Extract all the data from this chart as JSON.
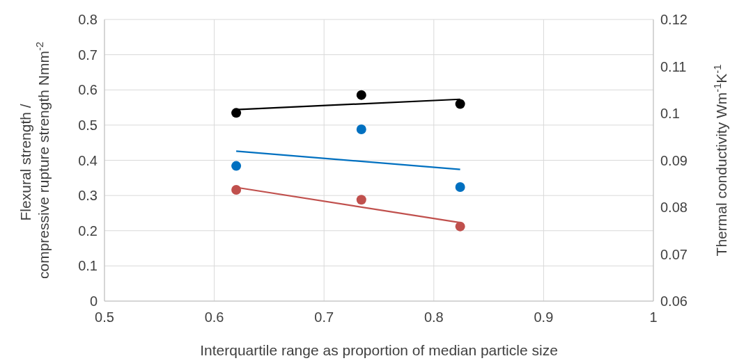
{
  "chart_data": {
    "type": "scatter",
    "xlabel": "Interquartile range as proportion of median particle size",
    "ylabel": "Flexural strength / compressive rupture strength Nmm$^{-2}$",
    "y2label": "Thermal conductivity Wm$^{-1}$K$^{-1}$",
    "xlim": [
      0.5,
      1
    ],
    "xticks": [
      0.5,
      0.6,
      0.7,
      0.8,
      0.9,
      1
    ],
    "ylim": [
      0,
      0.8
    ],
    "yticks": [
      0,
      0.1,
      0.2,
      0.3,
      0.4,
      0.5,
      0.6,
      0.7,
      0.8
    ],
    "y2lim": [
      0.06,
      0.12
    ],
    "y2ticks": [
      0.06,
      0.07,
      0.08,
      0.09,
      0.1,
      0.11,
      0.12
    ],
    "grid": true,
    "marker": "circle",
    "series": [
      {
        "color": "#000000",
        "x": [
          0.62,
          0.734,
          0.824
        ],
        "values": [
          0.1001,
          0.1039,
          0.102
        ],
        "axis": "y2"
      },
      {
        "type": "line",
        "color": "#000000",
        "x": [
          0.62,
          0.824
        ],
        "values": [
          0.1008,
          0.103
        ],
        "axis": "y2",
        "marker": "none"
      },
      {
        "color": "#0070c0",
        "x": [
          0.62,
          0.734,
          0.824
        ],
        "values": [
          0.384,
          0.488,
          0.324
        ]
      },
      {
        "type": "line",
        "color": "#0070c0",
        "x": [
          0.62,
          0.824
        ],
        "values": [
          0.426,
          0.374
        ],
        "marker": "none"
      },
      {
        "color": "#c0504d",
        "x": [
          0.62,
          0.734,
          0.824
        ],
        "values": [
          0.316,
          0.288,
          0.212
        ]
      },
      {
        "type": "line",
        "color": "#c0504d",
        "x": [
          0.62,
          0.824
        ],
        "values": [
          0.323,
          0.223
        ],
        "marker": "none"
      }
    ]
  }
}
